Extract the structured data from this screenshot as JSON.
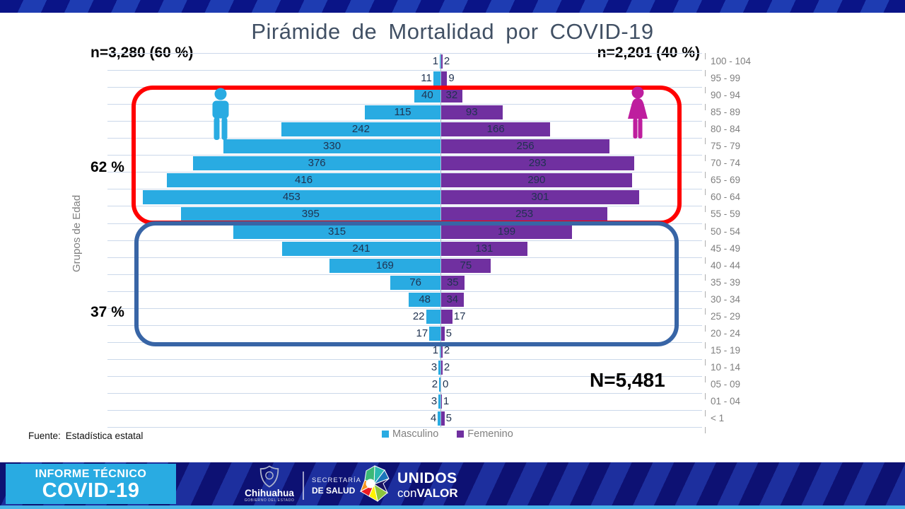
{
  "title": "Pirámide de Mortalidad por COVID-19",
  "axis": {
    "y_label": "Grupos de Edad"
  },
  "source": {
    "label": "Fuente:",
    "value": "Estadística estatal"
  },
  "colors": {
    "male": "#29ABE2",
    "female": "#7030A0",
    "male_icon": "#29ABE2",
    "female_icon": "#BE1E9E",
    "red_box": "#FF0000",
    "blue_box": "#3865A6",
    "grid": "#CBD8EA",
    "value_label": "#1F3250",
    "age_label": "#7F7F7F",
    "title": "#415064"
  },
  "chart_data": {
    "type": "bar",
    "subtype": "population_pyramid",
    "title": "Pirámide de Mortalidad por COVID-19",
    "xlabel": "",
    "ylabel": "Grupos de Edad",
    "grid": true,
    "legend_position": "bottom",
    "categories": [
      "100 - 104",
      "95 - 99",
      "90 - 94",
      "85 - 89",
      "80 - 84",
      "75 - 79",
      "70 - 74",
      "65 - 69",
      "60 - 64",
      "55 - 59",
      "50 - 54",
      "45 - 49",
      "40 - 44",
      "35 - 39",
      "30 - 34",
      "25 - 29",
      "20 - 24",
      "15 - 19",
      "10 - 14",
      "05 - 09",
      "01 - 04",
      "< 1"
    ],
    "series": [
      {
        "name": "Masculino",
        "color": "#29ABE2",
        "total_label": "n=3,280 (60 %)",
        "values": [
          1,
          11,
          40,
          115,
          242,
          330,
          376,
          416,
          453,
          395,
          315,
          241,
          169,
          76,
          48,
          22,
          17,
          1,
          3,
          2,
          3,
          4
        ]
      },
      {
        "name": "Femenino",
        "color": "#7030A0",
        "total_label": "n=2,201 (40 %)",
        "values": [
          2,
          9,
          32,
          93,
          166,
          256,
          293,
          290,
          301,
          253,
          199,
          131,
          75,
          35,
          34,
          17,
          5,
          2,
          2,
          0,
          1,
          5
        ]
      }
    ],
    "annotations": {
      "upper_group_pct": "62 %",
      "lower_group_pct": "37 %",
      "grand_total": "N=5,481"
    }
  },
  "footer": {
    "informe_line1": "INFORME TÉCNICO",
    "informe_line2": "COVID-19",
    "gov_name": "Chihuahua",
    "gov_sub": "GOBIERNO DEL ESTADO",
    "secretaria_line1": "SECRETARÍA",
    "secretaria_line2": "DE SALUD",
    "unidos_line1": "UNIDOS",
    "unidos_con": "con",
    "unidos_valor": "VALOR"
  }
}
